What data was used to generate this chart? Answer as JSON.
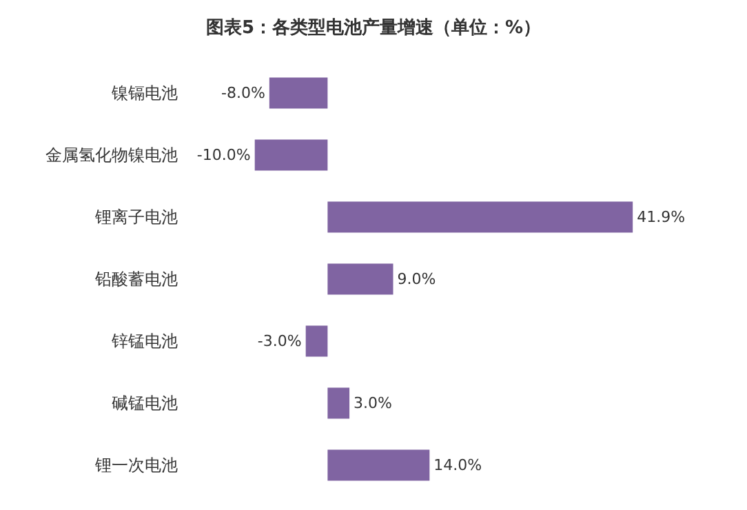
{
  "chart_data": {
    "type": "bar",
    "orientation": "horizontal",
    "title": "图表5：各类型电池产量增速（单位：%）",
    "categories": [
      "镍镉电池",
      "金属氢化物镍电池",
      "锂离子电池",
      "铅酸蓄电池",
      "锌锰电池",
      "碱锰电池",
      "锂一次电池"
    ],
    "values": [
      -8.0,
      -10.0,
      41.9,
      9.0,
      -3.0,
      3.0,
      14.0
    ],
    "value_labels": [
      "-8.0%",
      "-10.0%",
      "41.9%",
      "9.0%",
      "-3.0%",
      "3.0%",
      "14.0%"
    ],
    "color": "#8064a2"
  }
}
